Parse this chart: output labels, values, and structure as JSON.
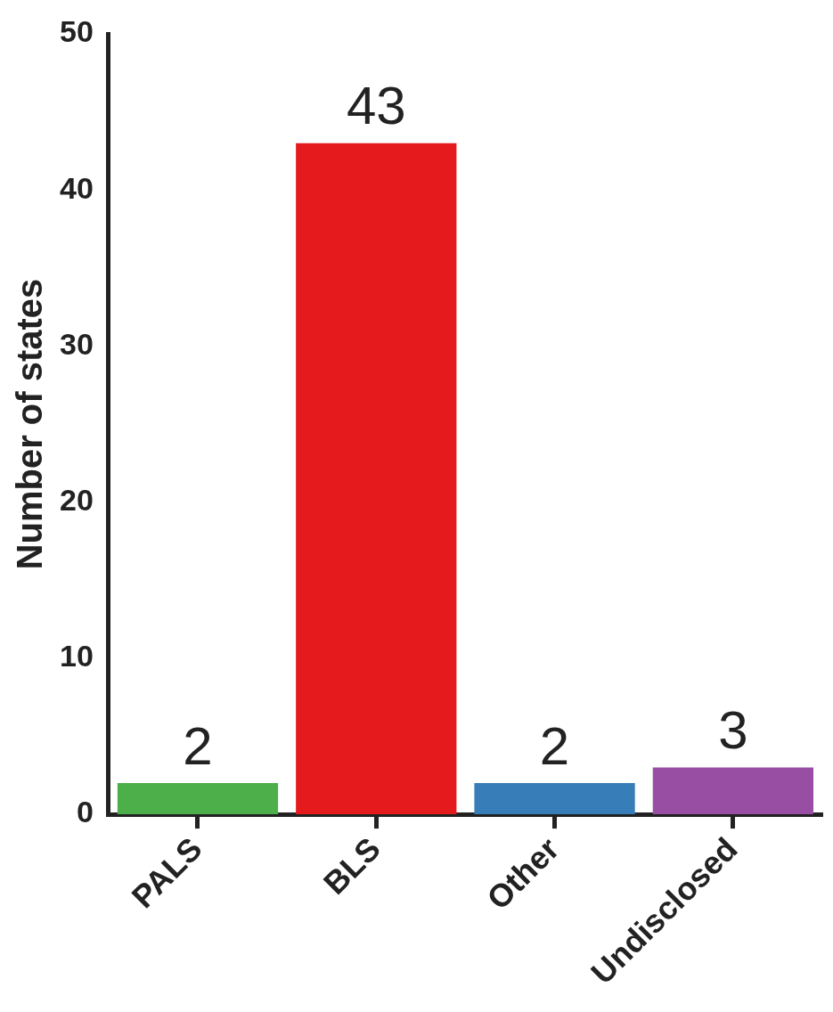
{
  "chart_data": {
    "type": "bar",
    "ylabel": "Number of states",
    "categories": [
      "PALS",
      "BLS",
      "Other",
      "Undisclosed"
    ],
    "values": [
      2,
      43,
      2,
      3
    ],
    "colors": [
      "#4daf4a",
      "#e41a1c",
      "#377eb8",
      "#984ea3"
    ],
    "ylim": [
      0,
      50
    ],
    "yticks": [
      0,
      10,
      20,
      30,
      40,
      50
    ],
    "data_labels": true
  }
}
